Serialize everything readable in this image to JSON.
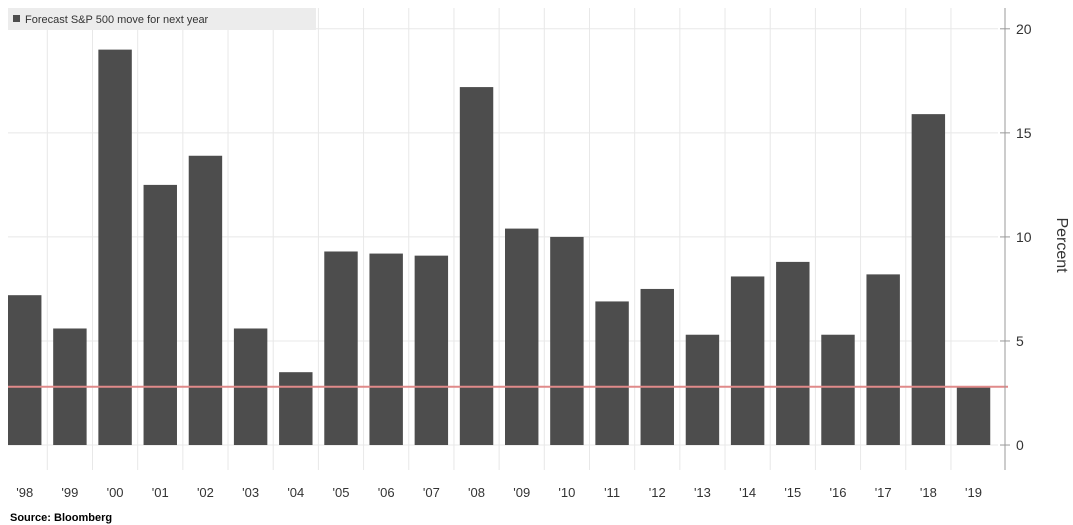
{
  "chart_data": {
    "type": "bar",
    "legend": "Forecast S&P 500 move for next year",
    "legend_position": "top-left",
    "ylabel": "Percent",
    "source": "Source: Bloomberg",
    "categories": [
      "'98",
      "'99",
      "'00",
      "'01",
      "'02",
      "'03",
      "'04",
      "'05",
      "'06",
      "'07",
      "'08",
      "'09",
      "'10",
      "'11",
      "'12",
      "'13",
      "'14",
      "'15",
      "'16",
      "'17",
      "'18",
      "'19"
    ],
    "values": [
      7.2,
      5.6,
      19.0,
      12.5,
      13.9,
      5.6,
      3.5,
      9.3,
      9.2,
      9.1,
      17.2,
      10.4,
      10.0,
      6.9,
      7.5,
      5.3,
      8.1,
      8.8,
      5.3,
      8.2,
      15.9,
      2.8
    ],
    "yticks": [
      "0",
      "5",
      "10",
      "15",
      "20"
    ],
    "ylim": [
      -1.2,
      21
    ],
    "y_axis_position": "right",
    "grid": true,
    "reference_line": 2.8,
    "colors": {
      "bar": "#4d4d4d",
      "reference_line": "#e08a8a",
      "grid": "#e8e8e8",
      "axis": "#999999",
      "legend_bg": "#ececec"
    }
  }
}
